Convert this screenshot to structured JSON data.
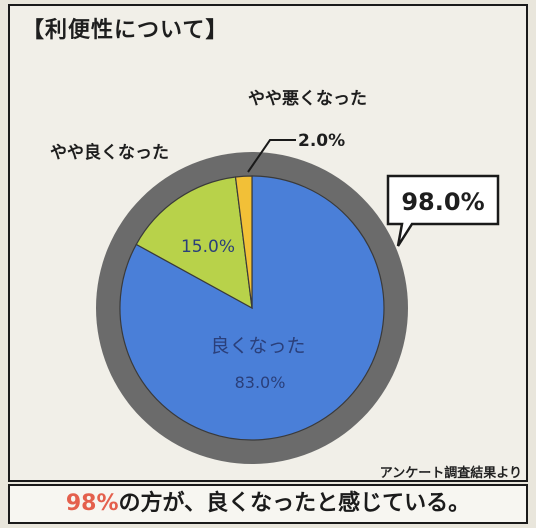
{
  "title": "【利便性について】",
  "footer_source": "アンケート調査結果より",
  "callout": "98.0%",
  "summary": {
    "highlight": "98%",
    "text": "の方が、良くなったと感じている。"
  },
  "colors": {
    "ring": "#6b6b6b",
    "good": "#4a7fd8",
    "slightly_good": "#b8d24a",
    "slightly_bad": "#f2c037",
    "accent": "#e4604d"
  },
  "chart_data": {
    "type": "pie",
    "title": "【利便性について】",
    "slices": [
      {
        "label": "良くなった",
        "value": 83.0,
        "display": "83.0%",
        "color": "#4a7fd8"
      },
      {
        "label": "やや良くなった",
        "value": 15.0,
        "display": "15.0%",
        "color": "#b8d24a"
      },
      {
        "label": "やや悪くなった",
        "value": 2.0,
        "display": "2.0%",
        "color": "#f2c037"
      }
    ],
    "annotation": "98.0%"
  }
}
